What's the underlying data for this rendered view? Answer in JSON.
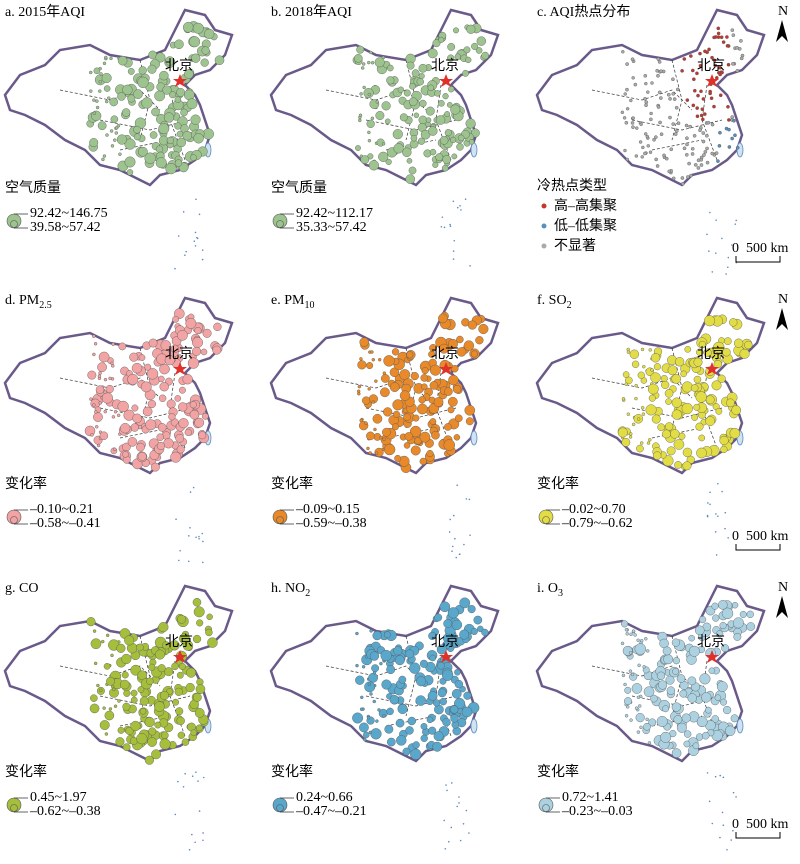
{
  "beijing": "北京",
  "north": "N",
  "scale_bar": {
    "zero": "0",
    "label": "500 km"
  },
  "panels": [
    {
      "title": "a. 2015年AQI",
      "legend_title": "空气质量",
      "legend": [
        "92.42~146.75",
        "39.58~57.42"
      ]
    },
    {
      "title": "b. 2018年AQI",
      "legend_title": "空气质量",
      "legend": [
        "92.42~112.17",
        "35.33~57.42"
      ]
    },
    {
      "title": "c. AQI热点分布",
      "legend_title": "冷热点类型",
      "legend": [
        "高–高集聚",
        "低–低集聚",
        "不显著"
      ]
    },
    {
      "title": "d. PM",
      "title_sub": "2.5",
      "legend_title": "变化率",
      "legend": [
        "–0.10~0.21",
        "–0.58~–0.41"
      ]
    },
    {
      "title": "e. PM",
      "title_sub": "10",
      "legend_title": "变化率",
      "legend": [
        "–0.09~0.15",
        "–0.59~–0.38"
      ]
    },
    {
      "title": "f. SO",
      "title_sub": "2",
      "legend_title": "变化率",
      "legend": [
        "–0.02~0.70",
        "–0.79~–0.62"
      ]
    },
    {
      "title": "g. CO",
      "legend_title": "变化率",
      "legend": [
        "0.45~1.97",
        "–0.62~–0.38"
      ]
    },
    {
      "title": "h. NO",
      "title_sub": "2",
      "legend_title": "变化率",
      "legend": [
        "0.24~0.66",
        "–0.47~–0.21"
      ]
    },
    {
      "title": "i. O",
      "title_sub": "3",
      "legend_title": "变化率",
      "legend": [
        "0.72~1.41",
        "–0.23~–0.03"
      ]
    }
  ]
}
